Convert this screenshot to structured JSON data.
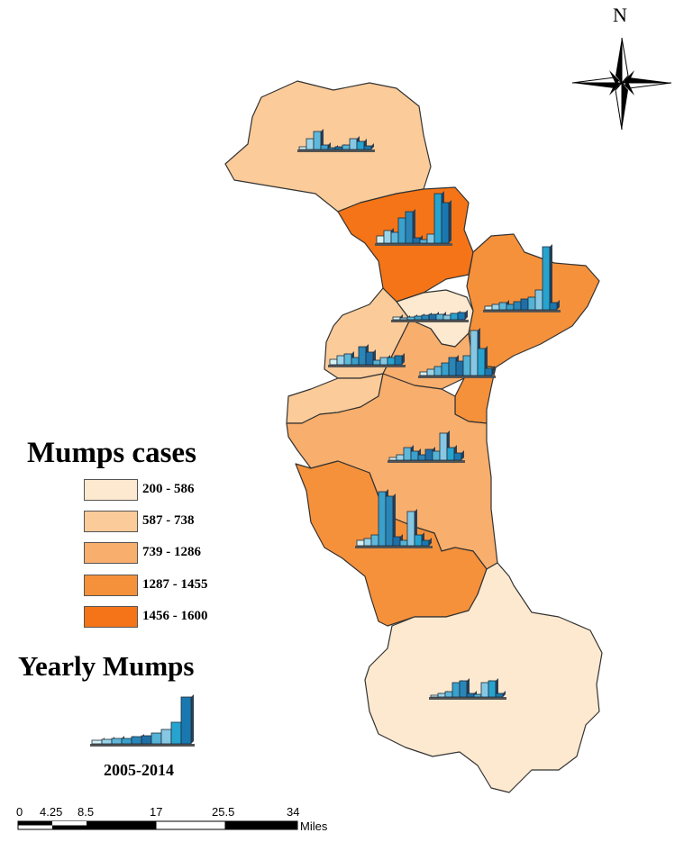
{
  "legend": {
    "title": "Mumps cases",
    "classes": [
      {
        "label": "200 - 586",
        "color": "#fde9cf"
      },
      {
        "label": "587 - 738",
        "color": "#fbcb99"
      },
      {
        "label": "739 - 1286",
        "color": "#f8ae6c"
      },
      {
        "label": "1287 - 1455",
        "color": "#f6913b"
      },
      {
        "label": "1456 - 1600",
        "color": "#f47417"
      }
    ]
  },
  "chart_legend": {
    "title": "Yearly Mumps",
    "years": "2005-2014",
    "bar_colors": [
      "#d6f2f7",
      "#9bd4e8",
      "#5fb8da",
      "#3aa0cc",
      "#2a86b8",
      "#1f6fa6",
      "#55b3d6",
      "#86c8e4",
      "#27a3cf",
      "#1a78b0"
    ]
  },
  "north_arrow": {
    "label": "N"
  },
  "scale_bar": {
    "ticks": [
      "0",
      "4.25",
      "8.5",
      "17",
      "25.5",
      "34"
    ],
    "unit": "Miles"
  }
}
